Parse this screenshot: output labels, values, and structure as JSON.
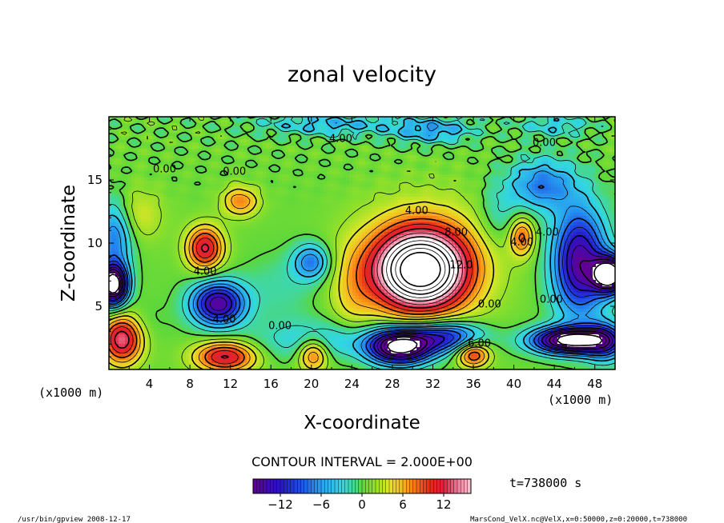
{
  "chart_data": {
    "type": "heatmap",
    "title": "zonal velocity",
    "xlabel": "X-coordinate",
    "ylabel": "Z-coordinate",
    "x_unit": "(x1000 m)",
    "x_unit_right": "(x1000 m)",
    "xlim": [
      0,
      50
    ],
    "ylim": [
      0,
      20
    ],
    "x_ticks": [
      "4",
      "8",
      "12",
      "16",
      "20",
      "24",
      "28",
      "32",
      "36",
      "40",
      "44",
      "48"
    ],
    "y_ticks": [
      "5",
      "10",
      "15"
    ],
    "contour_interval_label": "CONTOUR INTERVAL = 2.000E+00",
    "time_label": "t=738000 s",
    "colorbar": {
      "range": [
        -16,
        16
      ],
      "ticks": [
        "−12",
        "−6",
        "0",
        "6",
        "12"
      ],
      "tick_values": [
        -12,
        -6,
        0,
        6,
        12
      ]
    },
    "contour_labels": [
      {
        "text": "4.00",
        "x": 22.9,
        "z": 18.0
      },
      {
        "text": "0.00",
        "x": 43.0,
        "z": 17.7
      },
      {
        "text": "0.00",
        "x": 5.5,
        "z": 15.6
      },
      {
        "text": "0.00",
        "x": 12.4,
        "z": 15.4
      },
      {
        "text": "4.00",
        "x": 30.4,
        "z": 12.3
      },
      {
        "text": "8.00",
        "x": 34.3,
        "z": 10.6
      },
      {
        "text": "12.0",
        "x": 34.8,
        "z": 8.0
      },
      {
        "text": "4.00",
        "x": 9.5,
        "z": 7.5
      },
      {
        "text": "4.00",
        "x": 40.8,
        "z": 9.8
      },
      {
        "text": "4.00",
        "x": 43.3,
        "z": 10.6
      },
      {
        "text": "0.00",
        "x": 43.7,
        "z": 5.3
      },
      {
        "text": "0.00",
        "x": 37.6,
        "z": 4.9
      },
      {
        "text": "4.00",
        "x": 11.4,
        "z": 3.7
      },
      {
        "text": "0.00",
        "x": 16.9,
        "z": 3.2
      },
      {
        "text": "6.00",
        "x": 36.6,
        "z": 1.8
      }
    ],
    "features": [
      {
        "x": 30.7,
        "z": 7.8,
        "sx": 4.6,
        "sz": 3.1,
        "amp": 22
      },
      {
        "x": 31.2,
        "z": 8.8,
        "sx": 6.4,
        "sz": 4.6,
        "amp": 6
      },
      {
        "x": 9.5,
        "z": 9.6,
        "sx": 1.8,
        "sz": 1.7,
        "amp": 12
      },
      {
        "x": 13.0,
        "z": 13.3,
        "sx": 1.8,
        "sz": 1.2,
        "amp": 7
      },
      {
        "x": 11.5,
        "z": 1.0,
        "sx": 3.0,
        "sz": 1.2,
        "amp": 12
      },
      {
        "x": 1.3,
        "z": 2.5,
        "sx": 2.0,
        "sz": 2.0,
        "amp": 14
      },
      {
        "x": 20.2,
        "z": 1.2,
        "sx": 1.5,
        "sz": 1.3,
        "amp": 9
      },
      {
        "x": 36.0,
        "z": 1.2,
        "sx": 1.6,
        "sz": 1.0,
        "amp": 10
      },
      {
        "x": 40.8,
        "z": 10.5,
        "sx": 1.2,
        "sz": 1.5,
        "amp": 8
      },
      {
        "x": 2.4,
        "z": 12.2,
        "sx": 2.8,
        "sz": 2.2,
        "amp": 4
      },
      {
        "x": 24.0,
        "z": 5.5,
        "sx": 2.2,
        "sz": 4.2,
        "amp": 3
      },
      {
        "x": 46.5,
        "z": 8.5,
        "sx": 2.6,
        "sz": 4.2,
        "amp": -16
      },
      {
        "x": 49.5,
        "z": 7.5,
        "sx": 1.6,
        "sz": 1.4,
        "amp": -24
      },
      {
        "x": 45.5,
        "z": 2.3,
        "sx": 3.6,
        "sz": 1.0,
        "amp": -22
      },
      {
        "x": 49.0,
        "z": 2.2,
        "sx": 2.0,
        "sz": 1.5,
        "amp": -10
      },
      {
        "x": 10.8,
        "z": 5.2,
        "sx": 2.6,
        "sz": 1.7,
        "amp": -16
      },
      {
        "x": 0.4,
        "z": 6.7,
        "sx": 1.4,
        "sz": 1.6,
        "amp": -24
      },
      {
        "x": 0.6,
        "z": 10.8,
        "sx": 1.8,
        "sz": 2.8,
        "amp": -9
      },
      {
        "x": 28.8,
        "z": 1.8,
        "sx": 3.0,
        "sz": 1.3,
        "amp": -22
      },
      {
        "x": 22.0,
        "z": 2.3,
        "sx": 7.0,
        "sz": 1.6,
        "amp": -5
      },
      {
        "x": 33.3,
        "z": 2.6,
        "sx": 3.5,
        "sz": 1.2,
        "amp": -12
      },
      {
        "x": 20.0,
        "z": 8.5,
        "sx": 1.8,
        "sz": 1.4,
        "amp": -8
      },
      {
        "x": 42.8,
        "z": 14.6,
        "sx": 3.2,
        "sz": 2.0,
        "amp": -8
      },
      {
        "x": 38.5,
        "z": 12.3,
        "sx": 2.0,
        "sz": 2.5,
        "amp": -3
      },
      {
        "x": 22.0,
        "z": 19.4,
        "sx": 7.0,
        "sz": 0.9,
        "amp": -5
      },
      {
        "x": 32.0,
        "z": 18.9,
        "sx": 4.0,
        "sz": 1.0,
        "amp": -6
      },
      {
        "x": 44.0,
        "z": 19.3,
        "sx": 3.5,
        "sz": 0.9,
        "amp": -4
      },
      {
        "x": 2.0,
        "z": 3.8,
        "sx": 3.0,
        "sz": 1.6,
        "amp": -2
      },
      {
        "x": 17.0,
        "z": 6.5,
        "sx": 3.5,
        "sz": 2.5,
        "amp": -2
      }
    ],
    "background_value": 0.5,
    "footer_left": "/usr/bin/gpview   2008-12-17",
    "footer_right": "MarsCond_VelX.nc@VelX,x=0:50000,z=0:20000,t=738000"
  }
}
